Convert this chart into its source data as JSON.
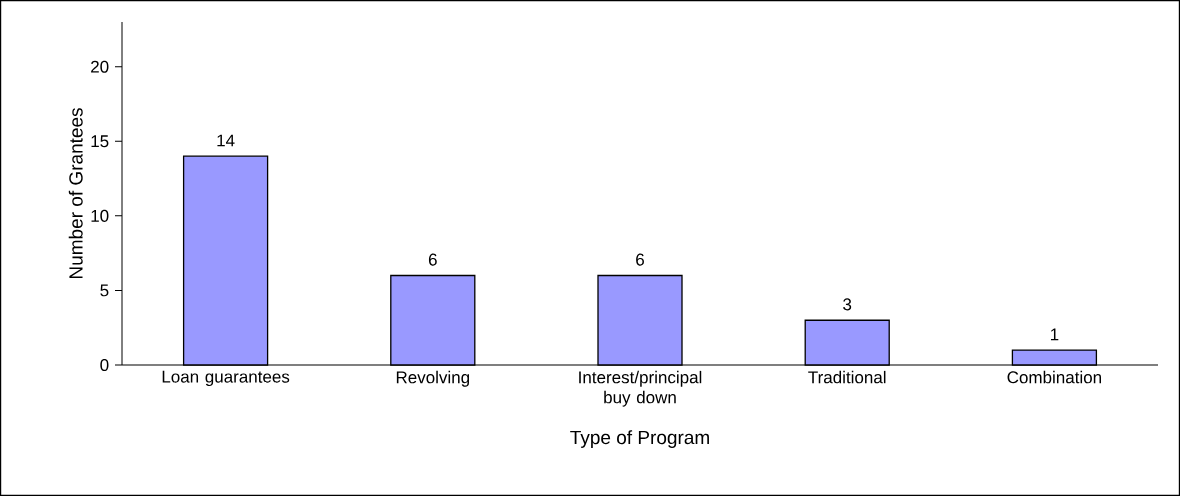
{
  "chart_data": {
    "type": "bar",
    "xlabel": "Type of Program",
    "ylabel": "Number of Grantees",
    "categories": [
      "Loan guarantees",
      "Revolving",
      "Interest/principal buy down",
      "Traditional",
      "Combination"
    ],
    "values": [
      14,
      6,
      6,
      3,
      1
    ],
    "color": "#9999ff",
    "ylim": [
      0,
      23
    ],
    "yticks": [
      0,
      5,
      10,
      15,
      20
    ],
    "grid": false,
    "data_labels": true
  }
}
